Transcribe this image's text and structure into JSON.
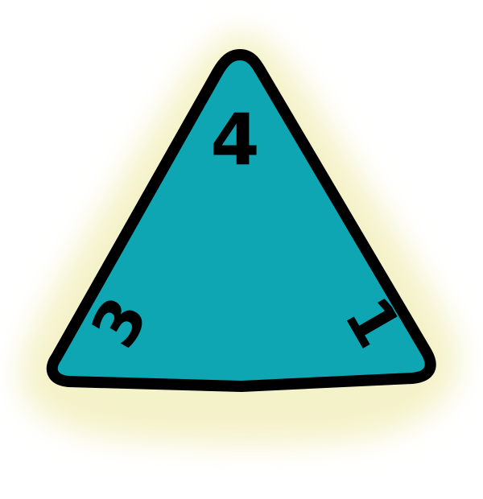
{
  "die": {
    "type": "d4",
    "face_numbers": {
      "top": "4",
      "left": "3",
      "right": "1"
    }
  },
  "colors": {
    "face": "#0ea6b2",
    "outline": "#000000",
    "glow": "#f3f0bf",
    "background": "#ffffff"
  }
}
